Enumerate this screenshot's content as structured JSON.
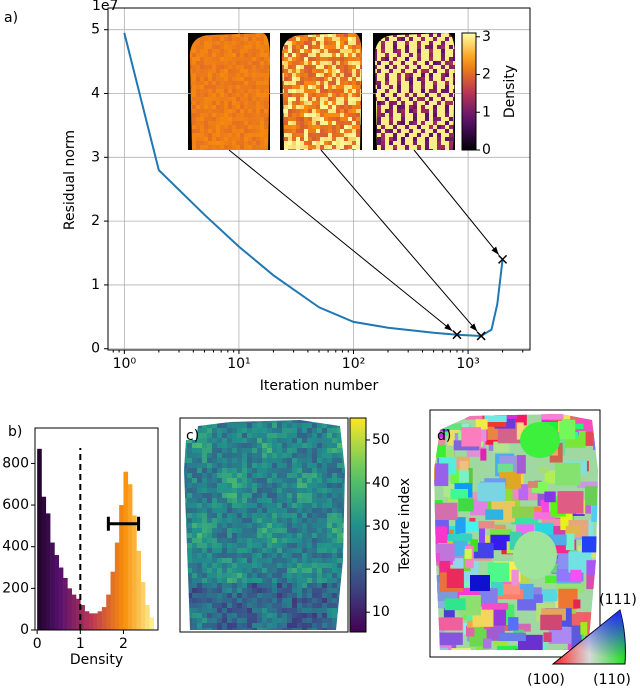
{
  "chart_data": [
    {
      "type": "line",
      "label": "a)",
      "x_label": "Iteration number",
      "y_label": "Residual norm",
      "y_offset_label": "1e7",
      "log_x": true,
      "grid": true,
      "xlim": [
        0.72,
        3470
      ],
      "ylim": [
        -0.02,
        5.34
      ],
      "xticks": [
        {
          "value": 1,
          "label": "10⁰"
        },
        {
          "value": 10,
          "label": "10¹"
        },
        {
          "value": 100,
          "label": "10²"
        },
        {
          "value": 1000,
          "label": "10³"
        }
      ],
      "yticks": [
        0,
        1,
        2,
        3,
        4,
        5
      ],
      "x": [
        1,
        2,
        5,
        10,
        20,
        50,
        100,
        200,
        500,
        800,
        1300,
        1600,
        1800,
        2000
      ],
      "series": [
        {
          "color": "#1f77b4",
          "values": [
            4.95,
            2.8,
            2.1,
            1.6,
            1.15,
            0.65,
            0.42,
            0.33,
            0.25,
            0.22,
            0.2,
            0.3,
            0.7,
            1.4
          ]
        }
      ],
      "markers": {
        "marker": "x",
        "color": "#000000",
        "x": [
          800,
          1300,
          2000
        ],
        "values": [
          0.22,
          0.2,
          1.4
        ]
      },
      "colorbar": {
        "label": "Density",
        "colormap": "inferno",
        "lim": [
          0,
          3.1
        ],
        "ticks": [
          0,
          1,
          2,
          3
        ]
      }
    },
    {
      "type": "histogram",
      "label": "b)",
      "x_label": "Density",
      "xlim": [
        -0.05,
        2.8
      ],
      "ylim": [
        0,
        970
      ],
      "xticks": [
        0,
        1,
        2
      ],
      "yticks": [
        0,
        200,
        400,
        600,
        800
      ],
      "bins": [
        0,
        0.1,
        0.2,
        0.3,
        0.4,
        0.5,
        0.6,
        0.7,
        0.8,
        0.9,
        1.0,
        1.1,
        1.2,
        1.3,
        1.4,
        1.5,
        1.6,
        1.7,
        1.8,
        1.9,
        2.0,
        2.1,
        2.2,
        2.3,
        2.4,
        2.5,
        2.6,
        2.7
      ],
      "values": [
        870,
        640,
        560,
        420,
        360,
        300,
        250,
        200,
        170,
        150,
        120,
        90,
        80,
        80,
        90,
        110,
        170,
        280,
        420,
        600,
        760,
        700,
        550,
        380,
        230,
        120,
        60
      ],
      "colormap": "inferno",
      "threshold": 1,
      "error_bar": {
        "center": 2.0,
        "error": 0.35,
        "y": 510
      }
    },
    {
      "type": "image",
      "label": "c)",
      "colorbar": {
        "label": "Texture index",
        "colormap": "viridis",
        "lim": [
          5.4,
          55.1
        ],
        "ticks": [
          10,
          20,
          30,
          40,
          50
        ]
      }
    },
    {
      "type": "image",
      "label": "d)",
      "key_labels": [
        "(111)",
        "(100)",
        "(110)"
      ]
    }
  ]
}
